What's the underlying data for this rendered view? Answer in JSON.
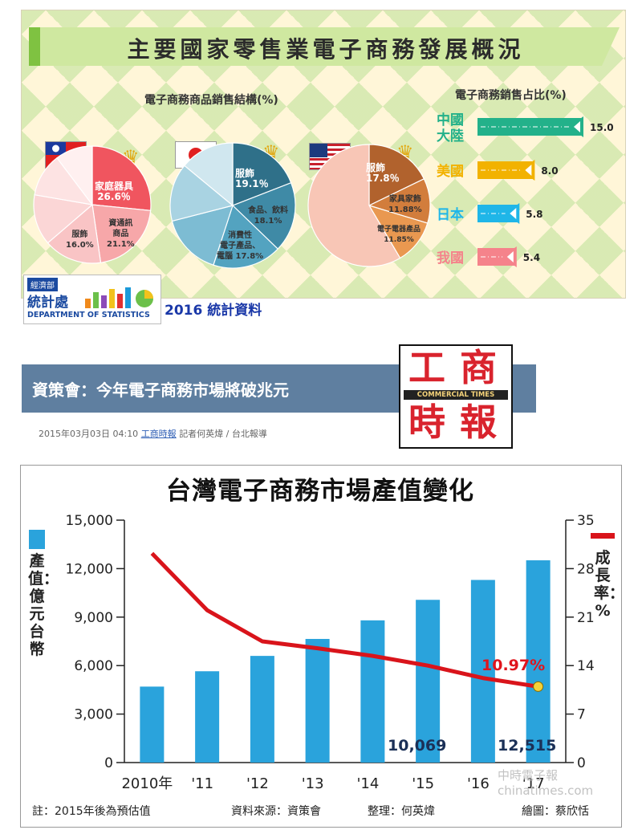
{
  "infographic": {
    "title": "主要國家零售業電子商務發展概況",
    "pie_heading": "電子商務商品銷售結構(%)",
    "share_heading": "電子商務銷售占比(%)",
    "agency": {
      "line1": "經濟部",
      "line2": "統計處",
      "english": "DEPARTMENT OF STATISTICS"
    },
    "year_label": "2016 統計資料",
    "icons": [
      "taiwan-flag-icon",
      "japan-flag-icon",
      "usa-flag-icon",
      "crown-icon",
      "stats-logo-icon"
    ]
  },
  "article": {
    "headline": "資策會：今年電子商務市場將破兆元",
    "date": "2015年03月03日 04:10",
    "source": "工商時報",
    "byline": "記者何英煒 / 台北報導",
    "logo": {
      "chars": [
        "工",
        "商",
        "時",
        "報"
      ],
      "english": "COMMERCIAL TIMES"
    }
  },
  "colors": {
    "bars": "#2aa3dc",
    "rate_line": "#d9141b",
    "banner": "#cfe8a0",
    "news_bar": "#5f7fa0"
  },
  "chart_data": [
    {
      "type": "pie",
      "name": "taiwan",
      "slices": [
        {
          "label": "家庭器具",
          "value": 26.6,
          "value_label": "26.6％",
          "color": "#f0555f"
        },
        {
          "label": "資通訊\n商品",
          "value": 21.1,
          "value_label": "21.1%",
          "color": "#f7a7a9"
        },
        {
          "label": "服飾",
          "value": 16.0,
          "value_label": "16.0%",
          "color": "#f9c4c5"
        },
        {
          "value": 14.0,
          "color": "#fbd6d6"
        },
        {
          "value": 12.0,
          "color": "#fde3e3"
        },
        {
          "value": 10.3,
          "color": "#fff0f0"
        }
      ]
    },
    {
      "type": "pie",
      "name": "japan",
      "slices": [
        {
          "label": "服飾",
          "value": 19.1,
          "value_label": "19.1％",
          "color": "#2f7089"
        },
        {
          "label": "食品、飲料",
          "value": 18.1,
          "value_label": "18.1%",
          "color": "#3f8aa6"
        },
        {
          "label": "消費性\n電子產品、\n電腦",
          "value": 17.8,
          "value_label": "17.8%",
          "color": "#53a3c0"
        },
        {
          "value": 16.0,
          "color": "#7dbcd3"
        },
        {
          "value": 15.0,
          "color": "#a9d3e2"
        },
        {
          "value": 14.0,
          "color": "#d0e7ef"
        }
      ]
    },
    {
      "type": "pie",
      "name": "usa",
      "slices": [
        {
          "label": "服飾",
          "value": 17.8,
          "value_label": "17.8％",
          "color": "#b1622d"
        },
        {
          "label": "家具家飾",
          "value": 11.88,
          "value_label": "11.88%",
          "color": "#d27d3c"
        },
        {
          "label": "電子電器產品",
          "value": 11.85,
          "value_label": "11.85%",
          "color": "#e99850"
        },
        {
          "value": 58.47,
          "color": "#f8c6b6"
        }
      ]
    },
    {
      "type": "bar",
      "orientation": "horizontal",
      "categories": [
        "中國\n大陸",
        "美國",
        "日本",
        "我國"
      ],
      "values": [
        15.0,
        8.0,
        5.8,
        5.4
      ],
      "value_labels": [
        "15.0",
        "8.0",
        "5.8",
        "5.4"
      ],
      "colors": [
        "#23b18a",
        "#f2b200",
        "#1fb6e8",
        "#f5838b"
      ],
      "xlim": [
        0,
        15
      ]
    },
    {
      "type": "bar",
      "title": "台灣電子商務市場產值變化",
      "categories": [
        "2010年",
        "'11",
        "'12",
        "'13",
        "'14",
        "'15",
        "'16",
        "'17"
      ],
      "series": [
        {
          "name": "產值：億元台幣",
          "type": "bar",
          "values": [
            4700,
            5650,
            6600,
            7650,
            8800,
            10069,
            11300,
            12515
          ]
        },
        {
          "name": "成長率：%",
          "type": "line",
          "axis": "right",
          "values": [
            30.2,
            22.0,
            17.5,
            16.5,
            15.4,
            14.0,
            12.2,
            10.97
          ]
        }
      ],
      "y_left": {
        "label": "產值：億元台幣",
        "range": [
          0,
          15000
        ],
        "ticks": [
          0,
          3000,
          6000,
          9000,
          12000,
          15000
        ],
        "tick_labels": [
          "0",
          "3,000",
          "6,000",
          "9,000",
          "12,000",
          "15,000"
        ]
      },
      "y_right": {
        "label": "成長率：%",
        "range": [
          0,
          35
        ],
        "ticks": [
          0,
          7,
          14,
          21,
          28,
          35
        ],
        "tick_labels": [
          "0",
          "7",
          "14",
          "21",
          "28",
          "35"
        ]
      },
      "annotations": [
        "10,069",
        "12,515",
        "10.97%"
      ],
      "legend_position": "top-left and top-right",
      "grid": false
    }
  ],
  "chart_notes": {
    "note": "註：2015年後為預估值",
    "source": "資料來源：資策會",
    "compiled": "整理：何英煒",
    "drawn": "繪圖：蔡欣恬",
    "watermark": "中時電子報 chinatimes.com"
  }
}
